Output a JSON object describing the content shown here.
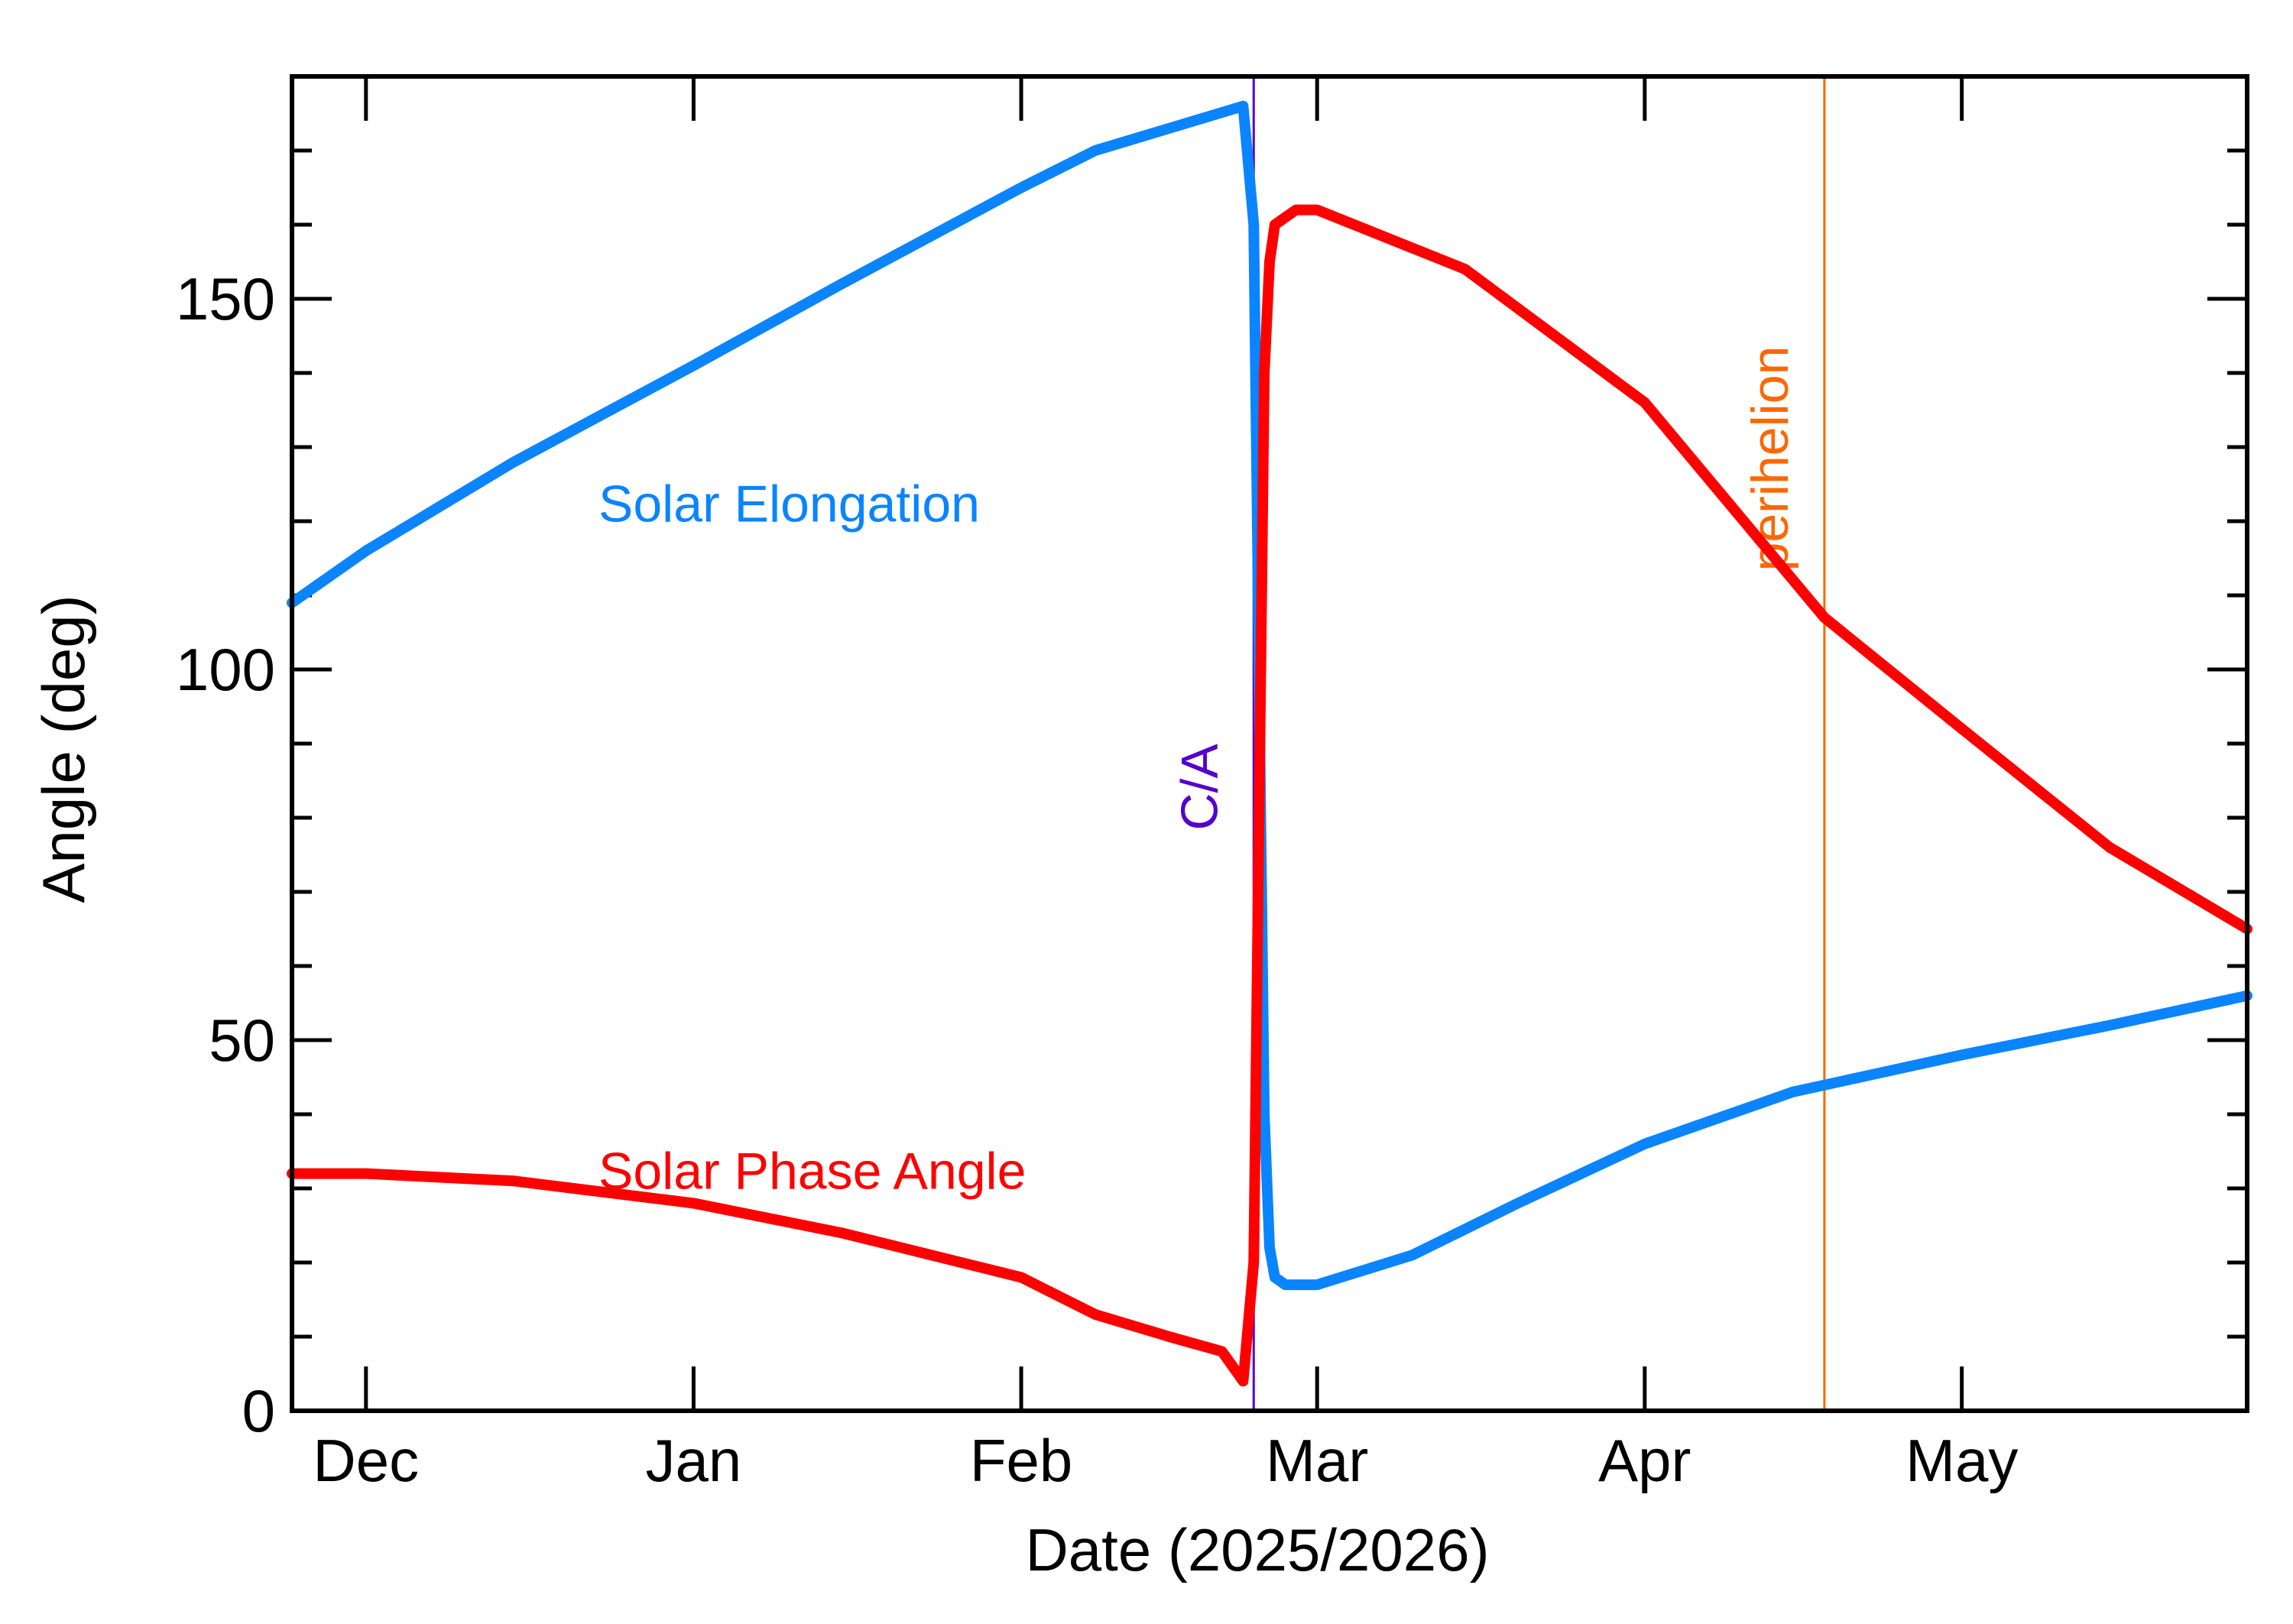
{
  "chart_data": {
    "type": "line",
    "xlabel": "Date (2025/2026)",
    "ylabel": "Angle (deg)",
    "x_axis": {
      "type": "date",
      "min": "2025-11-24",
      "max": "2026-05-28"
    },
    "ylim": [
      0,
      180
    ],
    "x_ticks": [
      {
        "date": "2025-12-01",
        "label": "Dec"
      },
      {
        "date": "2026-01-01",
        "label": "Jan"
      },
      {
        "date": "2026-02-01",
        "label": "Feb"
      },
      {
        "date": "2026-03-01",
        "label": "Mar"
      },
      {
        "date": "2026-04-01",
        "label": "Apr"
      },
      {
        "date": "2026-05-01",
        "label": "May"
      }
    ],
    "y_ticks": [
      0,
      50,
      100,
      150
    ],
    "grid": false,
    "series": [
      {
        "name": "Solar Elongation",
        "color": "#0a84ff",
        "points": [
          [
            "2025-11-24",
            109
          ],
          [
            "2025-12-01",
            116
          ],
          [
            "2025-12-15",
            128
          ],
          [
            "2026-01-01",
            141
          ],
          [
            "2026-01-15",
            152
          ],
          [
            "2026-02-01",
            165
          ],
          [
            "2026-02-08",
            170
          ],
          [
            "2026-02-15",
            173
          ],
          [
            "2026-02-22",
            176
          ],
          [
            "2026-02-23",
            160
          ],
          [
            "2026-02-23T12",
            100
          ],
          [
            "2026-02-24",
            40
          ],
          [
            "2026-02-24T12",
            22
          ],
          [
            "2026-02-25",
            18
          ],
          [
            "2026-02-26",
            17
          ],
          [
            "2026-03-01",
            17
          ],
          [
            "2026-03-10",
            21
          ],
          [
            "2026-03-20",
            28
          ],
          [
            "2026-04-01",
            36
          ],
          [
            "2026-04-15",
            43
          ],
          [
            "2026-05-01",
            48
          ],
          [
            "2026-05-15",
            52
          ],
          [
            "2026-05-28",
            56
          ]
        ]
      },
      {
        "name": "Solar Phase Angle",
        "color": "#ff0000",
        "points": [
          [
            "2025-11-24",
            32
          ],
          [
            "2025-12-01",
            32
          ],
          [
            "2025-12-15",
            31
          ],
          [
            "2026-01-01",
            28
          ],
          [
            "2026-01-15",
            24
          ],
          [
            "2026-02-01",
            18
          ],
          [
            "2026-02-08",
            13
          ],
          [
            "2026-02-15",
            10
          ],
          [
            "2026-02-20",
            8
          ],
          [
            "2026-02-22",
            4
          ],
          [
            "2026-02-23",
            20
          ],
          [
            "2026-02-23T12",
            80
          ],
          [
            "2026-02-24",
            140
          ],
          [
            "2026-02-24T12",
            155
          ],
          [
            "2026-02-25",
            160
          ],
          [
            "2026-02-27",
            162
          ],
          [
            "2026-03-01",
            162
          ],
          [
            "2026-03-15",
            154
          ],
          [
            "2026-04-01",
            136
          ],
          [
            "2026-04-18",
            107
          ],
          [
            "2026-05-01",
            92
          ],
          [
            "2026-05-15",
            76
          ],
          [
            "2026-05-28",
            65
          ]
        ]
      }
    ],
    "annotations": [
      {
        "text": "Solar Elongation",
        "color": "#0a84ff",
        "date": "2025-12-23",
        "y": 122
      },
      {
        "text": "Solar Phase Angle",
        "color": "#ff0000",
        "date": "2025-12-23",
        "y": 32
      }
    ],
    "markers": [
      {
        "label": "C/A",
        "date": "2026-02-23",
        "color": "#5500cc"
      },
      {
        "label": "perihelion",
        "date": "2026-04-18",
        "color": "#ff6600"
      }
    ]
  }
}
